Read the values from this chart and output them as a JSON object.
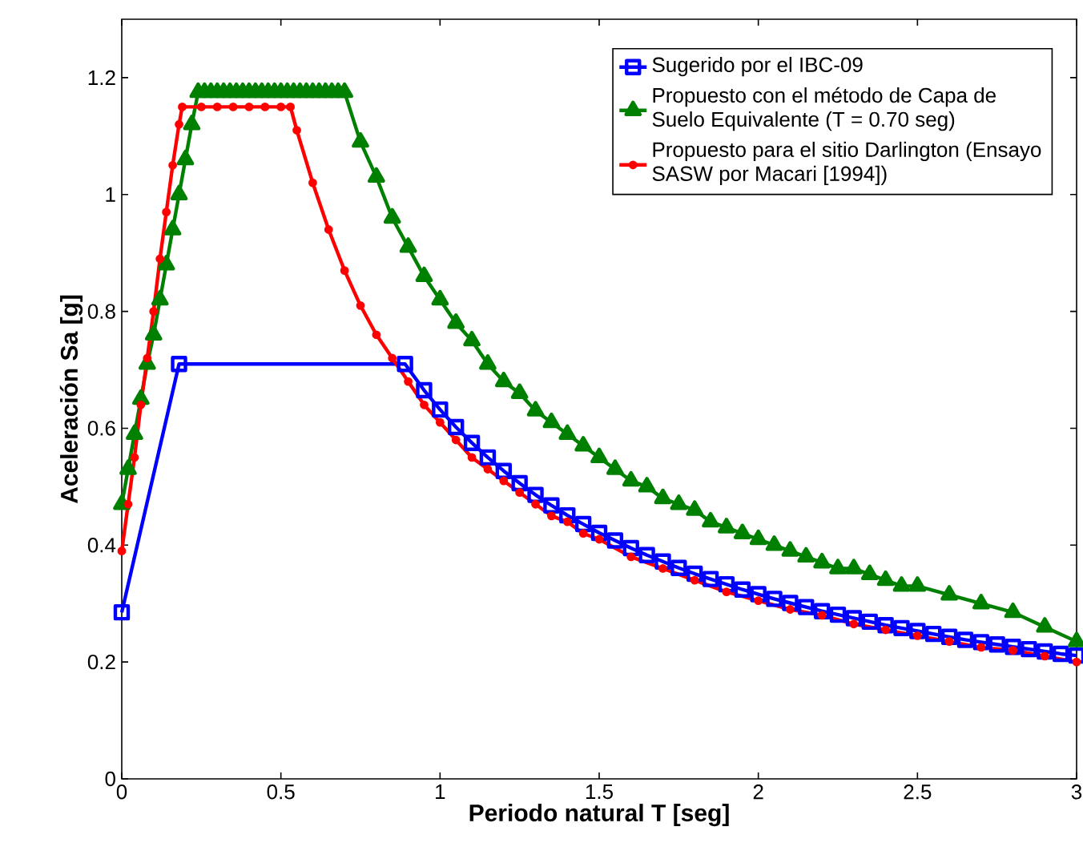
{
  "chart_data": {
    "type": "line",
    "xlabel": "Periodo natural T [seg]",
    "ylabel": "Aceleración Sa [g]",
    "xlim": [
      0,
      3
    ],
    "ylim": [
      0,
      1.3
    ],
    "xticks": [
      0,
      0.5,
      1,
      1.5,
      2,
      2.5,
      3
    ],
    "yticks": [
      0,
      0.2,
      0.4,
      0.6,
      0.8,
      1,
      1.2
    ],
    "legend": "top right",
    "grid": false,
    "series": [
      {
        "name": "Sugerido por el IBC-09",
        "color": "#0000ff",
        "marker": "square",
        "x": [
          0,
          0.18,
          0.89,
          0.95,
          1.0,
          1.05,
          1.1,
          1.15,
          1.2,
          1.25,
          1.3,
          1.35,
          1.4,
          1.45,
          1.5,
          1.55,
          1.6,
          1.65,
          1.7,
          1.75,
          1.8,
          1.85,
          1.9,
          1.95,
          2.0,
          2.05,
          2.1,
          2.15,
          2.2,
          2.25,
          2.3,
          2.35,
          2.4,
          2.45,
          2.5,
          2.55,
          2.6,
          2.65,
          2.7,
          2.75,
          2.8,
          2.85,
          2.9,
          2.95,
          3.0
        ],
        "values": [
          0.285,
          0.71,
          0.71,
          0.665,
          0.632,
          0.602,
          0.575,
          0.55,
          0.527,
          0.506,
          0.486,
          0.468,
          0.451,
          0.436,
          0.421,
          0.408,
          0.395,
          0.383,
          0.372,
          0.361,
          0.351,
          0.342,
          0.333,
          0.324,
          0.316,
          0.308,
          0.301,
          0.294,
          0.287,
          0.281,
          0.275,
          0.269,
          0.263,
          0.258,
          0.253,
          0.248,
          0.243,
          0.238,
          0.234,
          0.23,
          0.226,
          0.222,
          0.218,
          0.214,
          0.211
        ]
      },
      {
        "name": "Propuesto con el método de Capa de Suelo Equivalente (T = 0.70 seg)",
        "color": "#008000",
        "marker": "triangle",
        "x": [
          0,
          0.02,
          0.04,
          0.06,
          0.08,
          0.1,
          0.12,
          0.14,
          0.16,
          0.18,
          0.2,
          0.22,
          0.24,
          0.26,
          0.28,
          0.3,
          0.32,
          0.34,
          0.36,
          0.38,
          0.4,
          0.42,
          0.44,
          0.46,
          0.48,
          0.5,
          0.52,
          0.54,
          0.56,
          0.58,
          0.6,
          0.62,
          0.64,
          0.66,
          0.68,
          0.7,
          0.75,
          0.8,
          0.85,
          0.9,
          0.95,
          1.0,
          1.05,
          1.1,
          1.15,
          1.2,
          1.25,
          1.3,
          1.35,
          1.4,
          1.45,
          1.5,
          1.55,
          1.6,
          1.65,
          1.7,
          1.75,
          1.8,
          1.85,
          1.9,
          1.95,
          2.0,
          2.05,
          2.1,
          2.15,
          2.2,
          2.25,
          2.3,
          2.35,
          2.4,
          2.45,
          2.5,
          2.6,
          2.7,
          2.8,
          2.9,
          3.0
        ],
        "values": [
          0.47,
          0.53,
          0.59,
          0.65,
          0.71,
          0.76,
          0.82,
          0.88,
          0.94,
          1.0,
          1.06,
          1.12,
          1.175,
          1.175,
          1.175,
          1.175,
          1.175,
          1.175,
          1.175,
          1.175,
          1.175,
          1.175,
          1.175,
          1.175,
          1.175,
          1.175,
          1.175,
          1.175,
          1.175,
          1.175,
          1.175,
          1.175,
          1.175,
          1.175,
          1.175,
          1.175,
          1.09,
          1.03,
          0.96,
          0.91,
          0.86,
          0.82,
          0.78,
          0.75,
          0.71,
          0.68,
          0.66,
          0.63,
          0.61,
          0.59,
          0.57,
          0.55,
          0.53,
          0.51,
          0.5,
          0.48,
          0.47,
          0.46,
          0.44,
          0.43,
          0.42,
          0.41,
          0.4,
          0.39,
          0.38,
          0.37,
          0.36,
          0.36,
          0.35,
          0.34,
          0.33,
          0.33,
          0.315,
          0.3,
          0.285,
          0.26,
          0.235
        ]
      },
      {
        "name": "Propuesto para el sitio Darlington (Ensayo SASW por Macari [1994])",
        "color": "#ff0000",
        "marker": "circle",
        "x": [
          0,
          0.02,
          0.04,
          0.06,
          0.08,
          0.1,
          0.12,
          0.14,
          0.16,
          0.18,
          0.19,
          0.25,
          0.3,
          0.35,
          0.4,
          0.45,
          0.5,
          0.53,
          0.55,
          0.6,
          0.65,
          0.7,
          0.75,
          0.8,
          0.85,
          0.9,
          0.95,
          1.0,
          1.05,
          1.1,
          1.15,
          1.2,
          1.25,
          1.3,
          1.35,
          1.4,
          1.45,
          1.5,
          1.6,
          1.7,
          1.8,
          1.9,
          2.0,
          2.1,
          2.2,
          2.3,
          2.4,
          2.5,
          2.6,
          2.7,
          2.8,
          2.9,
          3.0
        ],
        "values": [
          0.39,
          0.47,
          0.55,
          0.64,
          0.72,
          0.8,
          0.89,
          0.97,
          1.05,
          1.12,
          1.15,
          1.15,
          1.15,
          1.15,
          1.15,
          1.15,
          1.15,
          1.15,
          1.11,
          1.02,
          0.94,
          0.87,
          0.81,
          0.76,
          0.72,
          0.68,
          0.64,
          0.61,
          0.58,
          0.55,
          0.53,
          0.51,
          0.49,
          0.47,
          0.45,
          0.44,
          0.42,
          0.41,
          0.38,
          0.36,
          0.34,
          0.32,
          0.305,
          0.29,
          0.28,
          0.265,
          0.255,
          0.245,
          0.235,
          0.225,
          0.22,
          0.21,
          0.2
        ]
      }
    ]
  }
}
